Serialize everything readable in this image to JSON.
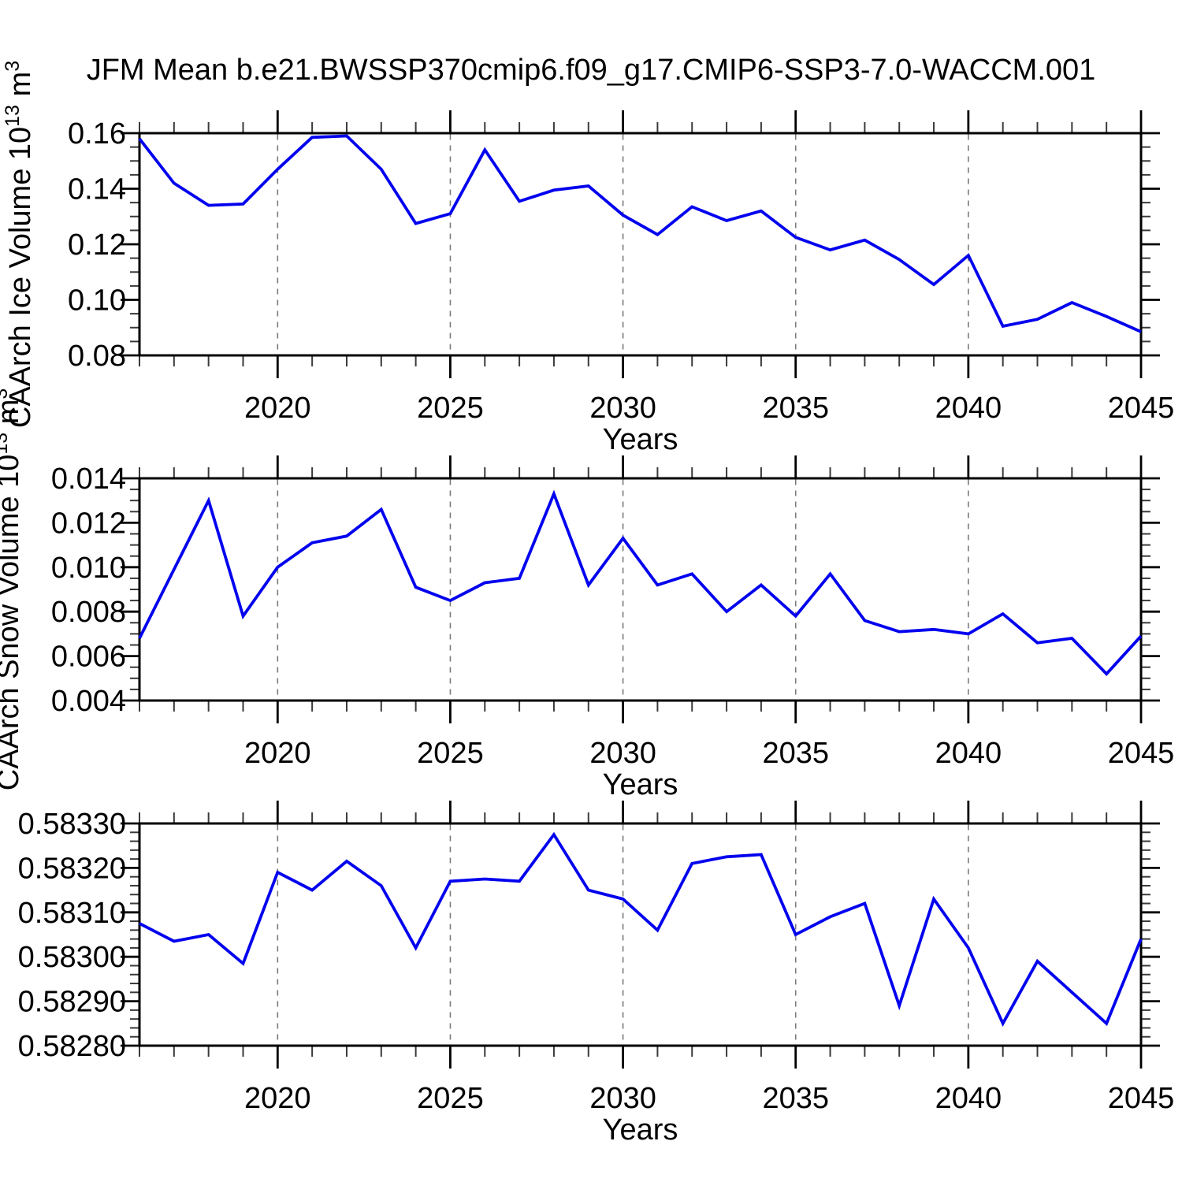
{
  "title": "JFM Mean b.e21.BWSSP370cmip6.f09_g17.CMIP6-SSP3-7.0-WACCM.001",
  "colors": {
    "line": "#0202ee",
    "axis": "#000000",
    "minor_tick": "#3a3a3a",
    "grid": "#7a7a7a",
    "text": "#000000",
    "background": "#ffffff"
  },
  "years": [
    2016,
    2017,
    2018,
    2019,
    2020,
    2021,
    2022,
    2023,
    2024,
    2025,
    2026,
    2027,
    2028,
    2029,
    2030,
    2031,
    2032,
    2033,
    2034,
    2035,
    2036,
    2037,
    2038,
    2039,
    2040,
    2041,
    2042,
    2043,
    2044,
    2045
  ],
  "chart_data": [
    {
      "type": "line",
      "name": "ice-volume",
      "title": "",
      "xlabel": "Years",
      "ylabel": "CAArch Ice Volume 10^13 m^3",
      "ylabel_rich": [
        {
          "t": "CAArch Ice Volume 10",
          "sup": false
        },
        {
          "t": "13",
          "sup": true
        },
        {
          "t": " m",
          "sup": false
        },
        {
          "t": "3",
          "sup": true
        }
      ],
      "x_key": "years",
      "values": [
        0.158,
        0.142,
        0.134,
        0.1345,
        0.147,
        0.1585,
        0.159,
        0.147,
        0.1275,
        0.131,
        0.154,
        0.1355,
        0.1395,
        0.141,
        0.1305,
        0.1235,
        0.1335,
        0.1285,
        0.132,
        0.1225,
        0.118,
        0.1215,
        0.1145,
        0.1055,
        0.116,
        0.0905,
        0.093,
        0.099,
        0.094,
        0.0885
      ],
      "xlim": [
        2016,
        2045
      ],
      "ylim": [
        0.08,
        0.16
      ],
      "xticks": [
        2020,
        2025,
        2030,
        2035,
        2040,
        2045
      ],
      "xtick_labels": [
        "2020",
        "2025",
        "2030",
        "2035",
        "2040",
        "2045"
      ],
      "x_minor_step": 1,
      "yticks": [
        0.08,
        0.1,
        0.12,
        0.14,
        0.16
      ],
      "ytick_labels": [
        "0.08",
        "0.10",
        "0.12",
        "0.14",
        "0.16"
      ],
      "y_minor_step": 0.005,
      "grid_x": [
        2020,
        2025,
        2030,
        2035,
        2040
      ],
      "grid_style": "dashed",
      "legend": "none"
    },
    {
      "type": "line",
      "name": "snow-volume",
      "title": "",
      "xlabel": "Years",
      "ylabel": "CAArch Snow Volume 10^13 m^3",
      "ylabel_rich": [
        {
          "t": "CAArch Snow Volume 10",
          "sup": false
        },
        {
          "t": "13",
          "sup": true
        },
        {
          "t": " m",
          "sup": false
        },
        {
          "t": "3",
          "sup": true
        }
      ],
      "x_key": "years",
      "values": [
        0.0068,
        0.0099,
        0.013,
        0.0078,
        0.01,
        0.0111,
        0.0114,
        0.0126,
        0.0091,
        0.0085,
        0.0093,
        0.0095,
        0.0133,
        0.0092,
        0.0113,
        0.0092,
        0.0097,
        0.008,
        0.0092,
        0.0078,
        0.0097,
        0.0076,
        0.0071,
        0.0072,
        0.007,
        0.0079,
        0.0066,
        0.0068,
        0.0052,
        0.0069
      ],
      "xlim": [
        2016,
        2045
      ],
      "ylim": [
        0.004,
        0.014
      ],
      "xticks": [
        2020,
        2025,
        2030,
        2035,
        2040,
        2045
      ],
      "xtick_labels": [
        "2020",
        "2025",
        "2030",
        "2035",
        "2040",
        "2045"
      ],
      "x_minor_step": 1,
      "yticks": [
        0.004,
        0.006,
        0.008,
        0.01,
        0.012,
        0.014
      ],
      "ytick_labels": [
        "0.004",
        "0.006",
        "0.008",
        "0.010",
        "0.012",
        "0.014"
      ],
      "y_minor_step": 0.0005,
      "grid_x": [
        2020,
        2025,
        2030,
        2035,
        2040
      ],
      "grid_style": "dashed",
      "legend": "none"
    },
    {
      "type": "line",
      "name": "third-series",
      "title": "",
      "xlabel": "Years",
      "ylabel": "",
      "ylabel_rich": [],
      "x_key": "years",
      "values": [
        0.583075,
        0.583035,
        0.58305,
        0.582985,
        0.58319,
        0.58315,
        0.583215,
        0.58316,
        0.58302,
        0.58317,
        0.583175,
        0.58317,
        0.583275,
        0.58315,
        0.58313,
        0.58306,
        0.58321,
        0.583225,
        0.58323,
        0.58305,
        0.58309,
        0.58312,
        0.58289,
        0.58313,
        0.58302,
        0.58285,
        0.58299,
        0.58292,
        0.58285,
        0.58304
      ],
      "xlim": [
        2016,
        2045
      ],
      "ylim": [
        0.5828,
        0.5833
      ],
      "xticks": [
        2020,
        2025,
        2030,
        2035,
        2040,
        2045
      ],
      "xtick_labels": [
        "2020",
        "2025",
        "2030",
        "2035",
        "2040",
        "2045"
      ],
      "x_minor_step": 1,
      "yticks": [
        0.5828,
        0.5829,
        0.583,
        0.5831,
        0.5832,
        0.5833
      ],
      "ytick_labels": [
        "0.58280",
        "0.58290",
        "0.58300",
        "0.58310",
        "0.58320",
        "0.58330"
      ],
      "y_minor_step": 2e-05,
      "grid_x": [
        2020,
        2025,
        2030,
        2035,
        2040
      ],
      "grid_style": "dashed",
      "legend": "none"
    }
  ]
}
